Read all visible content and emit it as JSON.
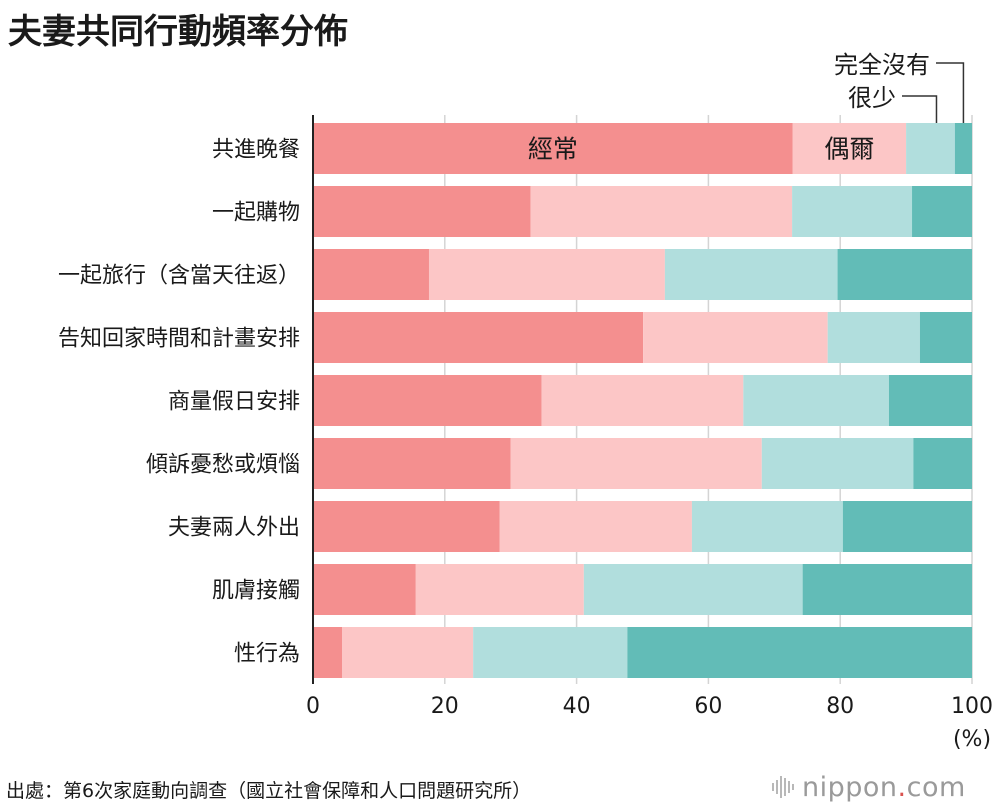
{
  "title": "夫妻共同行動頻率分佈",
  "footer": {
    "source": "出處：第6次家庭動向調查（國立社會保障和人口問題研究所）",
    "logo_text": "nippon",
    "logo_dot": ".",
    "logo_suffix": "com"
  },
  "chart_data": {
    "type": "bar",
    "orientation": "horizontal",
    "stacked": true,
    "title": "夫妻共同行動頻率分佈",
    "categories": [
      "共進晚餐",
      "一起購物",
      "一起旅行（含當天往返）",
      "告知回家時間和計畫安排",
      "商量假日安排",
      "傾訴憂愁或煩惱",
      "夫妻兩人外出",
      "肌膚接觸",
      "性行為"
    ],
    "series": [
      {
        "name": "經常",
        "color": "#f48f8f",
        "values": [
          72.8,
          33.0,
          17.6,
          50.1,
          34.7,
          30.0,
          28.3,
          15.6,
          4.4
        ]
      },
      {
        "name": "偶爾",
        "color": "#fcc6c6",
        "values": [
          17.2,
          39.7,
          35.8,
          28.0,
          30.6,
          38.1,
          29.2,
          25.5,
          19.9
        ]
      },
      {
        "name": "很少",
        "color": "#b1dedd",
        "values": [
          7.4,
          18.2,
          26.2,
          14.0,
          22.1,
          23.0,
          22.9,
          33.2,
          23.4
        ]
      },
      {
        "name": "完全沒有",
        "color": "#62bcb7",
        "values": [
          2.6,
          9.1,
          20.4,
          7.9,
          12.6,
          8.9,
          19.6,
          25.7,
          52.3
        ]
      }
    ],
    "xlim": [
      0,
      100
    ],
    "xticks": [
      "0",
      "20",
      "40",
      "60",
      "80",
      "100"
    ],
    "x_unit": "(%)",
    "grid": true
  }
}
